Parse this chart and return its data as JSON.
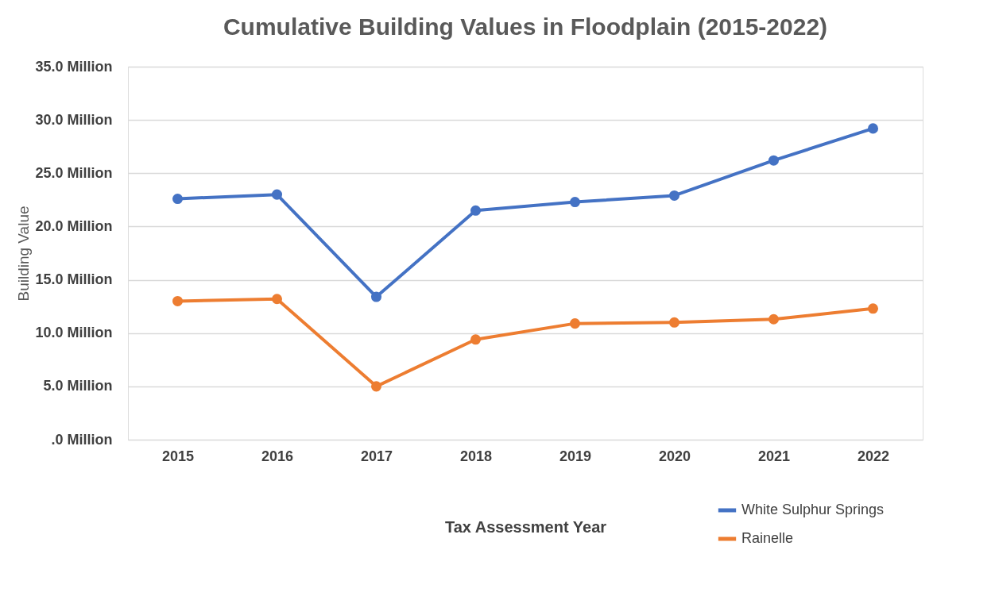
{
  "chart_data": {
    "type": "line",
    "title": "Cumulative Building Values in Floodplain (2015-2022)",
    "xlabel": "Tax Assessment Year",
    "ylabel": "Building Value",
    "categories": [
      "2015",
      "2016",
      "2017",
      "2018",
      "2019",
      "2020",
      "2021",
      "2022"
    ],
    "series": [
      {
        "name": "White Sulphur Springs",
        "color": "#4472c4",
        "values": [
          22.6,
          23.0,
          13.4,
          21.5,
          22.3,
          22.9,
          26.2,
          29.2
        ]
      },
      {
        "name": "Rainelle",
        "color": "#ed7d31",
        "values": [
          13.0,
          13.2,
          5.0,
          9.4,
          10.9,
          11.0,
          11.3,
          12.3
        ]
      }
    ],
    "ylim": [
      0,
      35
    ],
    "yticks": [
      {
        "value": 0,
        "label": ".0 Million"
      },
      {
        "value": 5,
        "label": "5.0 Million"
      },
      {
        "value": 10,
        "label": "10.0 Million"
      },
      {
        "value": 15,
        "label": "15.0 Million"
      },
      {
        "value": 20,
        "label": "20.0 Million"
      },
      {
        "value": 25,
        "label": "25.0 Million"
      },
      {
        "value": 30,
        "label": "30.0 Million"
      },
      {
        "value": 35,
        "label": "35.0 Million"
      }
    ],
    "grid": "y",
    "marker": "circle",
    "line_style": "solid",
    "legend": "bottom right"
  }
}
